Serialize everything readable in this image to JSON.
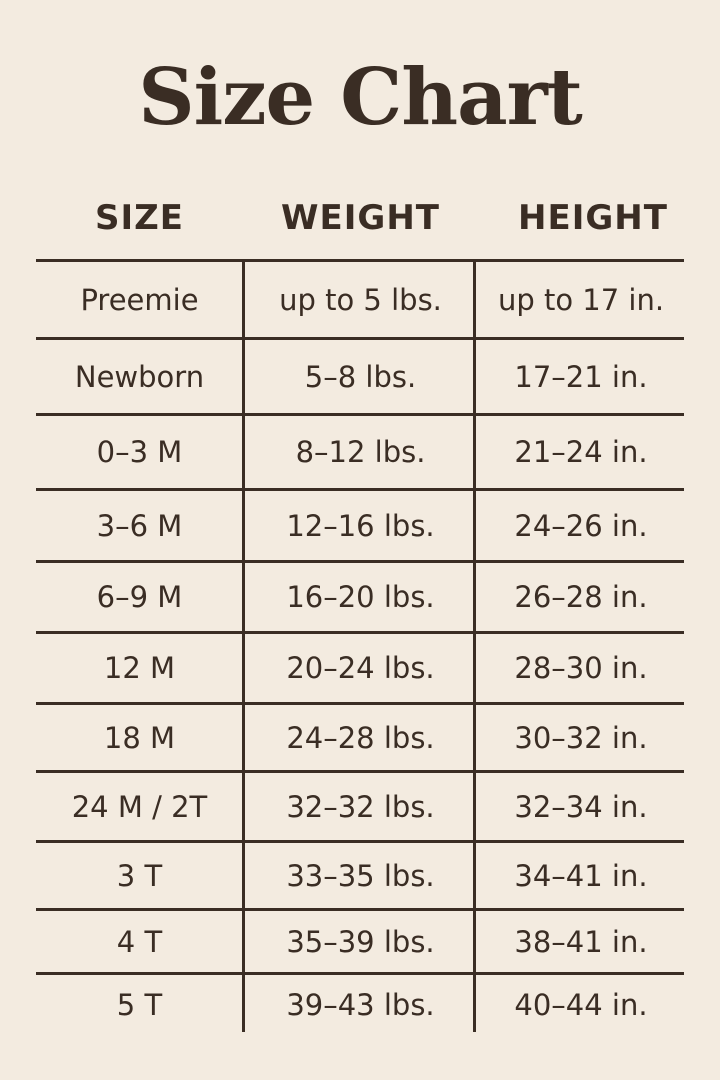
{
  "title": "Size Chart",
  "colors": {
    "background": "#f3ebe0",
    "text": "#3a2d24"
  },
  "headers": [
    "SIZE",
    "WEIGHT",
    "HEIGHT"
  ],
  "rows": [
    [
      "Preemie",
      "up to 5 lbs.",
      "up to 17 in."
    ],
    [
      "Newborn",
      "5–8 lbs.",
      "17–21 in."
    ],
    [
      "0–3 M",
      "8–12 lbs.",
      "21–24 in."
    ],
    [
      "3–6 M",
      "12–16 lbs.",
      "24–26 in."
    ],
    [
      "6–9 M",
      "16–20 lbs.",
      "26–28 in."
    ],
    [
      "12 M",
      "20–24 lbs.",
      "28–30 in."
    ],
    [
      "18 M",
      "24–28 lbs.",
      "30–32 in."
    ],
    [
      "24 M / 2T",
      "32–32 lbs.",
      "32–34 in."
    ],
    [
      "3 T",
      "33–35 lbs.",
      "34–41 in."
    ],
    [
      "4 T",
      "35–39 lbs.",
      "38–41 in."
    ],
    [
      "5 T",
      "39–43 lbs.",
      "40–44 in."
    ]
  ]
}
